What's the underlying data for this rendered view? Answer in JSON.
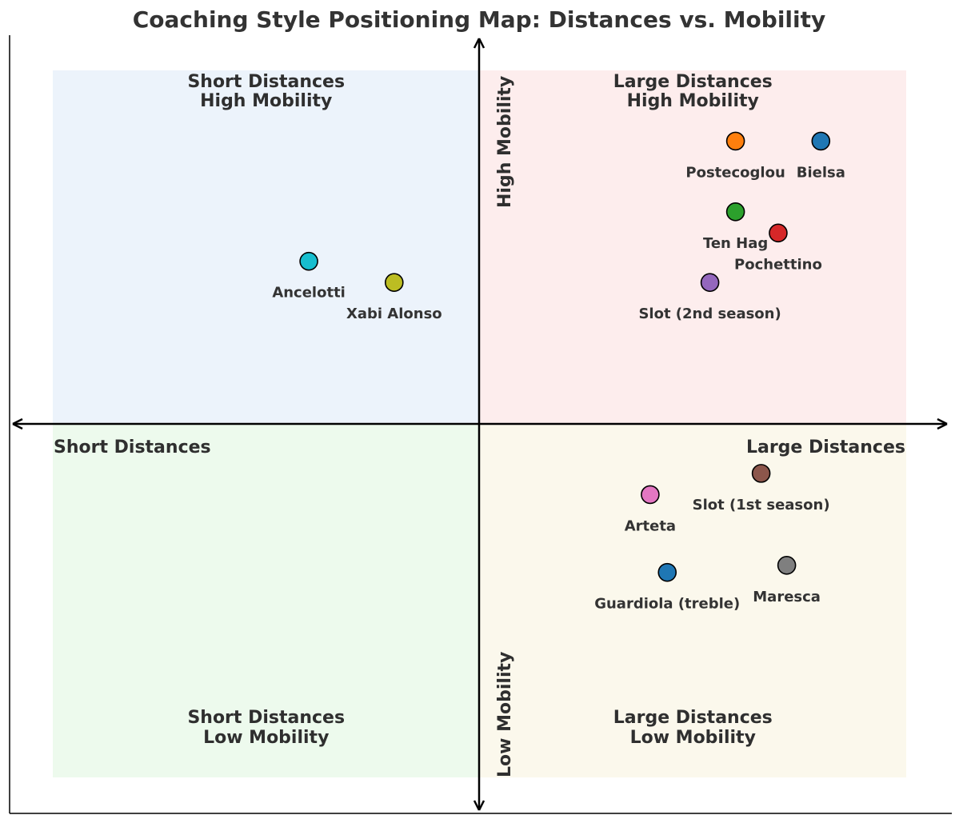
{
  "chart_data": {
    "type": "scatter",
    "title": "Coaching Style Positioning Map: Distances vs. Mobility",
    "xlim": [
      -10,
      10
    ],
    "ylim": [
      -10,
      10
    ],
    "grid": false,
    "axis_labels": {
      "x_negative": "Short Distances",
      "x_positive": "Large Distances",
      "y_positive": "High Mobility",
      "y_negative": "Low Mobility"
    },
    "quadrants": [
      {
        "id": "tl",
        "line1": "Short Distances",
        "line2": "High Mobility",
        "color": "#dceaf8"
      },
      {
        "id": "tr",
        "line1": "Large Distances",
        "line2": "High Mobility",
        "color": "#fbdede"
      },
      {
        "id": "bl",
        "line1": "Short Distances",
        "line2": "Low Mobility",
        "color": "#dff5df"
      },
      {
        "id": "br",
        "line1": "Large Distances",
        "line2": "Low Mobility",
        "color": "#f8f3dd"
      }
    ],
    "points": [
      {
        "name": "Bielsa",
        "x": 8,
        "y": 8,
        "color": "#1f77b4"
      },
      {
        "name": "Postecoglou",
        "x": 6,
        "y": 8,
        "color": "#ff7f0e"
      },
      {
        "name": "Ten Hag",
        "x": 6,
        "y": 6,
        "color": "#2ca02c"
      },
      {
        "name": "Pochettino",
        "x": 7,
        "y": 5.4,
        "color": "#d62728"
      },
      {
        "name": "Slot (2nd season)",
        "x": 5.4,
        "y": 4,
        "color": "#9467bd"
      },
      {
        "name": "Ancelotti",
        "x": -4,
        "y": 4.6,
        "color": "#17becf"
      },
      {
        "name": "Xabi Alonso",
        "x": -2,
        "y": 4,
        "color": "#bcbd22"
      },
      {
        "name": "Slot (1st season)",
        "x": 6.6,
        "y": -1.4,
        "color": "#8c564b"
      },
      {
        "name": "Arteta",
        "x": 4,
        "y": -2,
        "color": "#e377c2"
      },
      {
        "name": "Maresca",
        "x": 7.2,
        "y": -4,
        "color": "#7f7f7f"
      },
      {
        "name": "Guardiola (treble)",
        "x": 4.4,
        "y": -4.2,
        "color": "#1f77b4"
      }
    ]
  }
}
